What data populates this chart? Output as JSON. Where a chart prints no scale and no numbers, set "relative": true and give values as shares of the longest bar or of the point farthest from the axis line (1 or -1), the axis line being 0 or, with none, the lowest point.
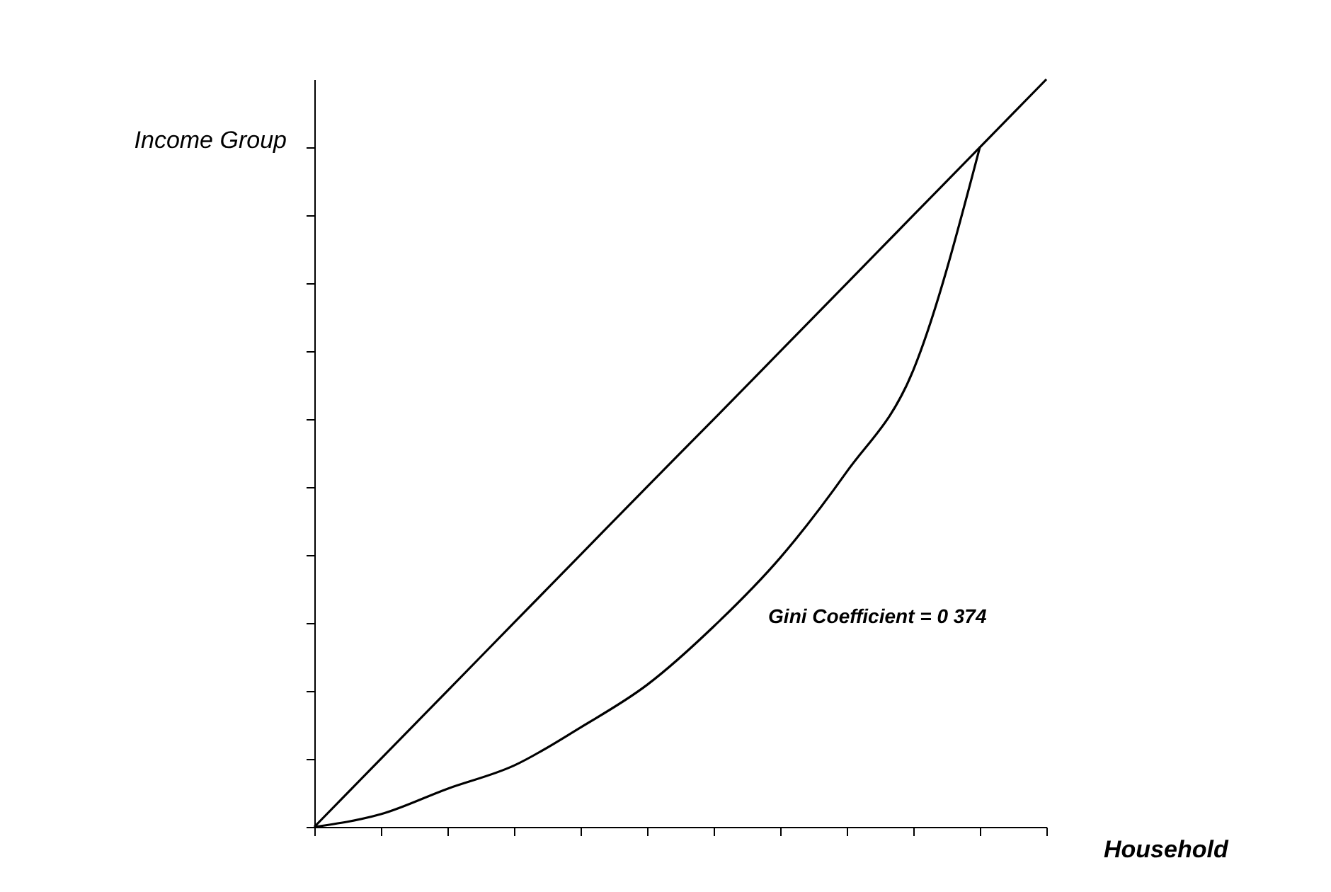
{
  "chart_data": {
    "type": "line",
    "relative": true,
    "xlabel": "Household",
    "ylabel": "Income Group",
    "categories": [
      null,
      null,
      null,
      null,
      null,
      null,
      null,
      null,
      null,
      null,
      null,
      null
    ],
    "series": [
      {
        "color": "#000000",
        "values": [
          0,
          0.091,
          0.182,
          0.273,
          0.364,
          0.455,
          0.545,
          0.636,
          0.727,
          0.818,
          0.909,
          1
        ]
      },
      {
        "color": "#000000",
        "values": [
          0,
          0.017,
          0.051,
          0.082,
          0.133,
          0.19,
          0.268,
          0.36,
          0.475,
          0.611,
          0.909,
          null
        ]
      }
    ],
    "annotations": [
      "Gini Coefficient = 0 374"
    ],
    "tick_labels": false,
    "legend": false,
    "grid": false,
    "marker": "none",
    "line_style": "solid"
  }
}
